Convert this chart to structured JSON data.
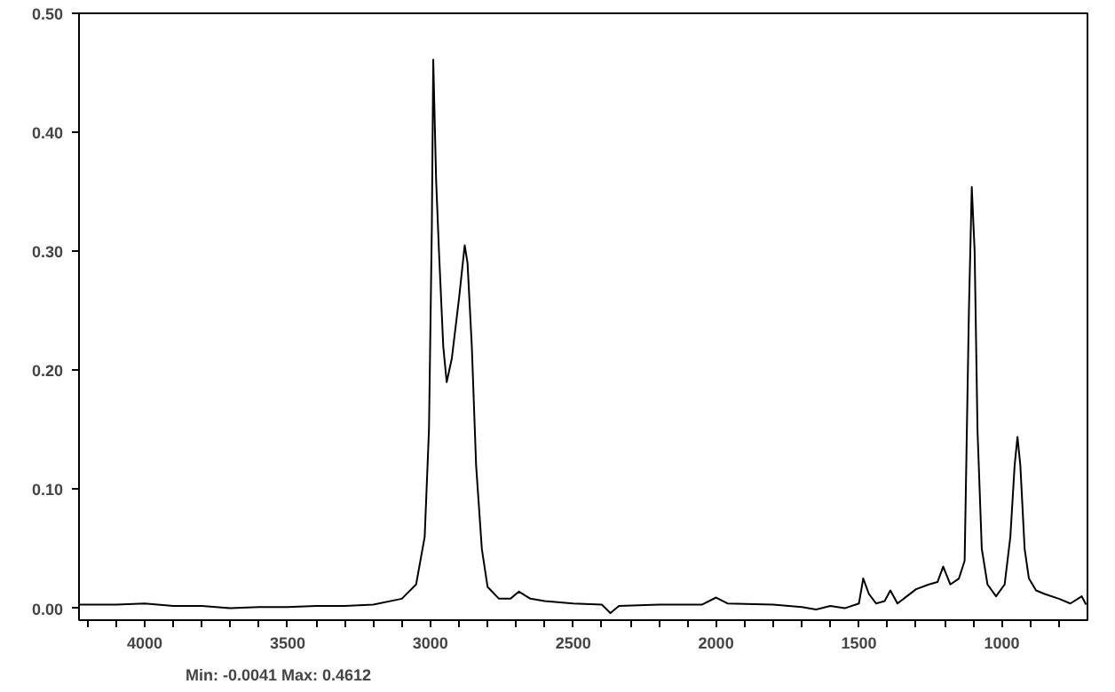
{
  "chart_data": {
    "type": "line",
    "x": [
      4229,
      4100,
      4000,
      3900,
      3800,
      3700,
      3600,
      3500,
      3400,
      3300,
      3200,
      3100,
      3050,
      3020,
      3005,
      2995,
      2990,
      2980,
      2970,
      2955,
      2943,
      2925,
      2900,
      2880,
      2870,
      2855,
      2840,
      2820,
      2800,
      2760,
      2720,
      2690,
      2650,
      2600,
      2500,
      2400,
      2370,
      2340,
      2200,
      2050,
      2000,
      1960,
      1800,
      1700,
      1650,
      1600,
      1550,
      1500,
      1485,
      1465,
      1440,
      1410,
      1390,
      1365,
      1300,
      1255,
      1225,
      1205,
      1180,
      1150,
      1130,
      1115,
      1105,
      1095,
      1085,
      1070,
      1050,
      1020,
      990,
      970,
      955,
      945,
      935,
      920,
      905,
      880,
      850,
      800,
      760,
      720,
      705
    ],
    "series": [
      {
        "color": "#000000",
        "values": [
          0.003,
          0.003,
          0.004,
          0.002,
          0.002,
          0.0,
          0.001,
          0.001,
          0.002,
          0.002,
          0.003,
          0.008,
          0.02,
          0.06,
          0.15,
          0.32,
          0.461,
          0.36,
          0.3,
          0.22,
          0.19,
          0.21,
          0.26,
          0.305,
          0.29,
          0.22,
          0.12,
          0.05,
          0.018,
          0.008,
          0.008,
          0.014,
          0.008,
          0.006,
          0.004,
          0.003,
          -0.004,
          0.002,
          0.003,
          0.003,
          0.009,
          0.004,
          0.003,
          0.001,
          -0.001,
          0.002,
          0.0,
          0.004,
          0.025,
          0.012,
          0.004,
          0.006,
          0.015,
          0.004,
          0.016,
          0.02,
          0.022,
          0.035,
          0.02,
          0.025,
          0.04,
          0.25,
          0.354,
          0.3,
          0.15,
          0.05,
          0.02,
          0.01,
          0.02,
          0.06,
          0.12,
          0.144,
          0.12,
          0.05,
          0.025,
          0.015,
          0.012,
          0.008,
          0.004,
          0.01,
          0.003
        ]
      }
    ],
    "xlim": [
      4230,
      700
    ],
    "ylim": [
      -0.01,
      0.5
    ],
    "xticks": [
      {
        "value": 4200,
        "label": null
      },
      {
        "value": 4100,
        "label": null
      },
      4000,
      {
        "value": 3900,
        "label": null
      },
      {
        "value": 3800,
        "label": null
      },
      {
        "value": 3700,
        "label": null
      },
      {
        "value": 3600,
        "label": null
      },
      3500,
      {
        "value": 3400,
        "label": null
      },
      {
        "value": 3300,
        "label": null
      },
      {
        "value": 3200,
        "label": null
      },
      {
        "value": 3100,
        "label": null
      },
      3000,
      {
        "value": 2900,
        "label": null
      },
      {
        "value": 2800,
        "label": null
      },
      {
        "value": 2700,
        "label": null
      },
      {
        "value": 2600,
        "label": null
      },
      2500,
      {
        "value": 2400,
        "label": null
      },
      {
        "value": 2300,
        "label": null
      },
      {
        "value": 2200,
        "label": null
      },
      {
        "value": 2100,
        "label": null
      },
      2000,
      {
        "value": 1900,
        "label": null
      },
      {
        "value": 1800,
        "label": null
      },
      {
        "value": 1700,
        "label": null
      },
      {
        "value": 1600,
        "label": null
      },
      1500,
      {
        "value": 1400,
        "label": null
      },
      {
        "value": 1300,
        "label": null
      },
      {
        "value": 1200,
        "label": null
      },
      {
        "value": 1100,
        "label": null
      },
      1000,
      {
        "value": 900,
        "label": null
      },
      {
        "value": 800,
        "label": null
      }
    ],
    "yticks": [
      {
        "value": 0,
        "label": "0.00"
      },
      {
        "value": 0.1,
        "label": "0.10"
      },
      {
        "value": 0.2,
        "label": "0.20"
      },
      {
        "value": 0.3,
        "label": "0.30"
      },
      {
        "value": 0.4,
        "label": "0.40"
      },
      {
        "value": 0.5,
        "label": "0.50"
      }
    ],
    "annotations": [
      "Min: -0.0041  Max: 0.4612"
    ],
    "grid": false,
    "line_style": "solid",
    "marker": "none"
  }
}
